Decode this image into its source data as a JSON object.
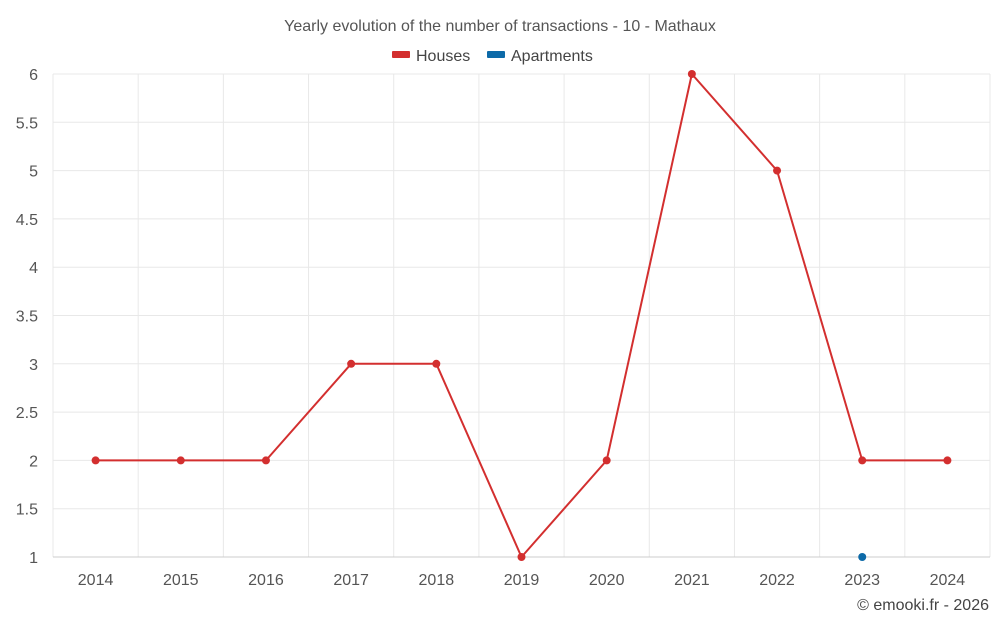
{
  "chart_data": {
    "type": "line",
    "title": "Yearly evolution of the number of transactions - 10 - Mathaux",
    "xlabel": "",
    "ylabel": "",
    "x": [
      "2014",
      "2015",
      "2016",
      "2017",
      "2018",
      "2019",
      "2020",
      "2021",
      "2022",
      "2023",
      "2024"
    ],
    "ylim": [
      1,
      6
    ],
    "yticks": [
      "1",
      "1.5",
      "2",
      "2.5",
      "3",
      "3.5",
      "4",
      "4.5",
      "5",
      "5.5",
      "6"
    ],
    "grid": true,
    "legend_position": "top",
    "series": [
      {
        "name": "Houses",
        "color": "#d32f2f",
        "values": [
          2,
          2,
          2,
          3,
          3,
          1,
          2,
          6,
          5,
          2,
          2
        ]
      },
      {
        "name": "Apartments",
        "color": "#0d6aa8",
        "values": [
          null,
          null,
          null,
          null,
          null,
          null,
          null,
          null,
          null,
          1,
          null
        ]
      }
    ]
  },
  "credit": "© emooki.fr - 2026"
}
